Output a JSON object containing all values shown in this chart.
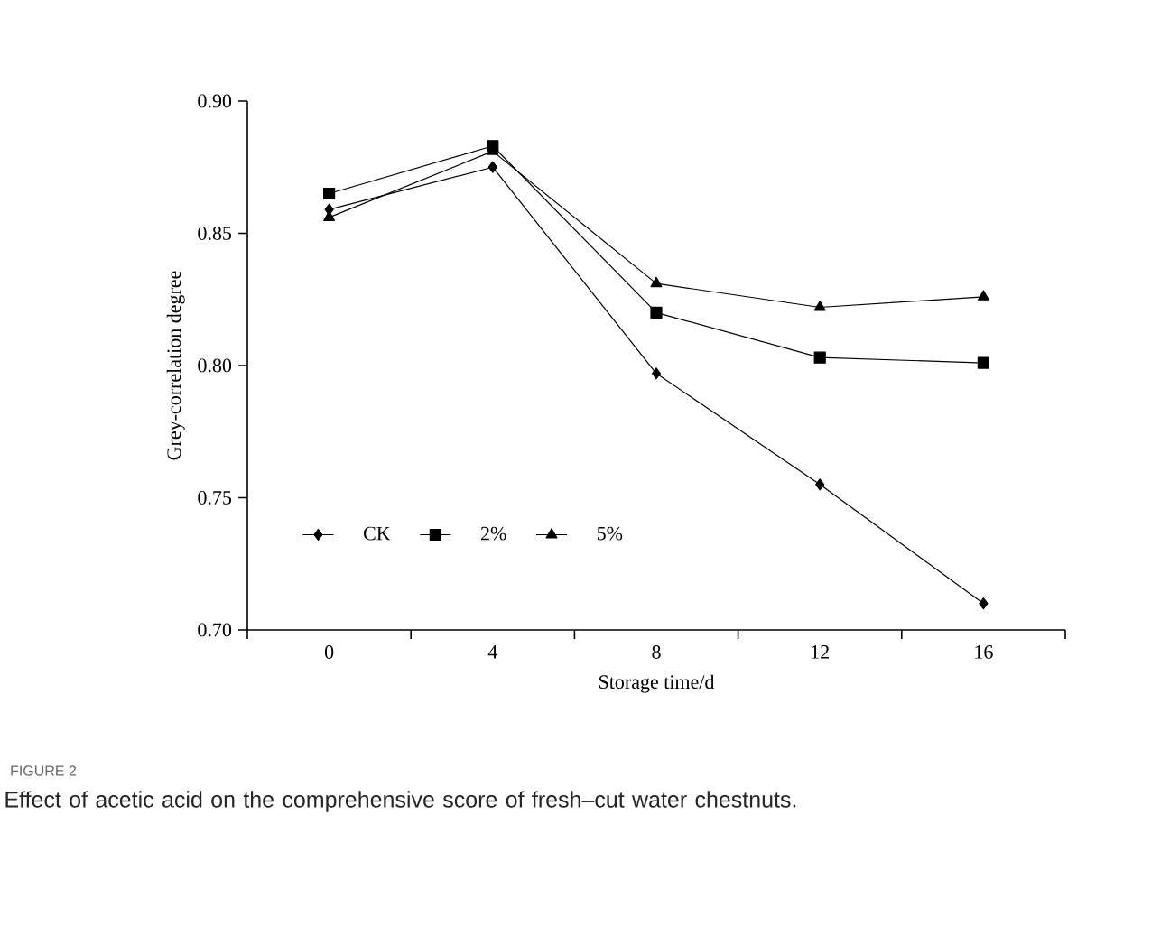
{
  "chart_data": {
    "type": "line",
    "xlabel": "Storage time/d",
    "ylabel": "Grey-correlation degree",
    "categories": [
      "0",
      "4",
      "8",
      "12",
      "16"
    ],
    "series": [
      {
        "name": "CK",
        "color": "#000000",
        "marker": "diamond",
        "values": [
          0.859,
          0.875,
          0.797,
          0.755,
          0.71
        ]
      },
      {
        "name": "2%",
        "color": "#000000",
        "marker": "square",
        "values": [
          0.865,
          0.883,
          0.82,
          0.803,
          0.801
        ]
      },
      {
        "name": "5%",
        "color": "#000000",
        "marker": "triangle",
        "values": [
          0.856,
          0.881,
          0.831,
          0.822,
          0.826
        ]
      }
    ],
    "ylim": [
      0.7,
      0.9
    ],
    "yticks": [
      {
        "value": 0.7,
        "label": "0.70"
      },
      {
        "value": 0.75,
        "label": "0.75"
      },
      {
        "value": 0.8,
        "label": "0.80"
      },
      {
        "value": 0.85,
        "label": "0.85"
      },
      {
        "value": 0.9,
        "label": "0.90"
      }
    ],
    "grid": false,
    "legend": "bottom left",
    "line_style": "solid",
    "annotations": [
      "FIGURE 2",
      "Effect of acetic acid on the comprehensive score of fresh–cut water chestnuts."
    ]
  }
}
